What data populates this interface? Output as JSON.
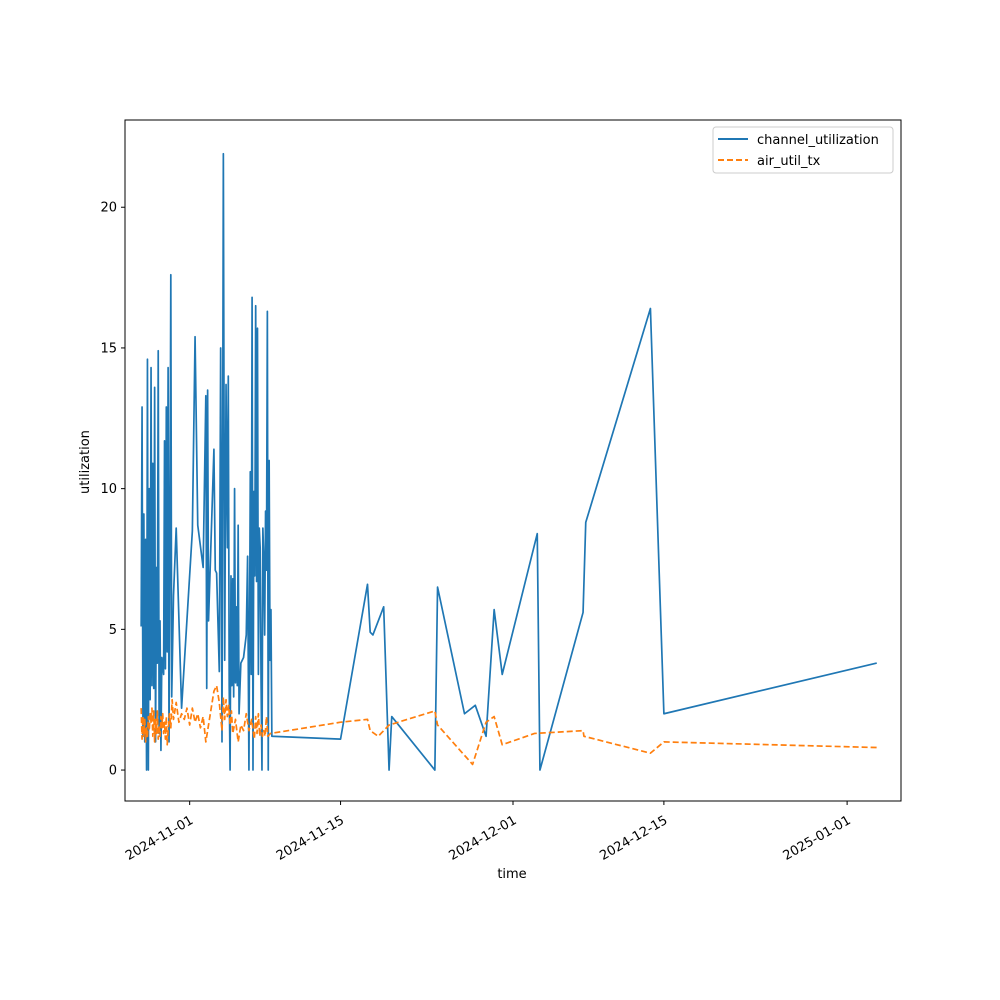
{
  "chart_data": {
    "type": "line",
    "title": "",
    "xlabel": "time",
    "ylabel": "utilization",
    "x_type": "date",
    "xlim": [
      "2024-10-26",
      "2025-01-06"
    ],
    "ylim": [
      -1.1,
      23.1
    ],
    "x_ticks": [
      "2024-11-01",
      "2024-11-15",
      "2024-12-01",
      "2024-12-15",
      "2025-01-01"
    ],
    "x_tick_labels": [
      "2024-11-01",
      "2024-11-15",
      "2024-12-01",
      "2024-12-15",
      "2025-01-01"
    ],
    "y_ticks": [
      0,
      5,
      10,
      15,
      20
    ],
    "y_tick_labels": [
      "0",
      "5",
      "10",
      "15",
      "20"
    ],
    "grid": false,
    "legend_position": "upper right",
    "series": [
      {
        "name": "channel_utilization",
        "color": "#1f77b4",
        "style": "solid",
        "points": [
          [
            "2024-10-27T12:00",
            5.1
          ],
          [
            "2024-10-27T14:00",
            12.9
          ],
          [
            "2024-10-27T16:00",
            1.2
          ],
          [
            "2024-10-27T18:00",
            9.1
          ],
          [
            "2024-10-27T20:00",
            1.0
          ],
          [
            "2024-10-27T22:00",
            8.2
          ],
          [
            "2024-10-28T00:00",
            0.0
          ],
          [
            "2024-10-28T02:00",
            14.6
          ],
          [
            "2024-10-28T04:00",
            0.0
          ],
          [
            "2024-10-28T06:00",
            10.0
          ],
          [
            "2024-10-28T08:00",
            2.5
          ],
          [
            "2024-10-28T10:00",
            14.3
          ],
          [
            "2024-10-28T12:00",
            3.0
          ],
          [
            "2024-10-28T14:00",
            10.9
          ],
          [
            "2024-10-28T16:00",
            2.9
          ],
          [
            "2024-10-28T18:00",
            13.6
          ],
          [
            "2024-10-28T20:00",
            1.0
          ],
          [
            "2024-10-28T22:00",
            7.2
          ],
          [
            "2024-10-29T00:00",
            3.8
          ],
          [
            "2024-10-29T02:00",
            14.9
          ],
          [
            "2024-10-29T04:00",
            1.3
          ],
          [
            "2024-10-29T06:00",
            5.3
          ],
          [
            "2024-10-29T08:00",
            0.7
          ],
          [
            "2024-10-29T10:00",
            4.0
          ],
          [
            "2024-10-29T14:00",
            3.4
          ],
          [
            "2024-10-29T16:00",
            11.7
          ],
          [
            "2024-10-29T18:00",
            3.6
          ],
          [
            "2024-10-29T20:00",
            12.9
          ],
          [
            "2024-10-29T22:00",
            4.2
          ],
          [
            "2024-10-30T00:00",
            14.3
          ],
          [
            "2024-10-30T02:00",
            1.0
          ],
          [
            "2024-10-30T04:00",
            8.0
          ],
          [
            "2024-10-30T06:00",
            17.6
          ],
          [
            "2024-10-30T08:00",
            2.6
          ],
          [
            "2024-10-30T12:00",
            6.2
          ],
          [
            "2024-10-30T18:00",
            8.6
          ],
          [
            "2024-10-31T06:00",
            2.2
          ],
          [
            "2024-11-01T06:00",
            8.5
          ],
          [
            "2024-11-01T12:00",
            15.4
          ],
          [
            "2024-11-01T18:00",
            8.7
          ],
          [
            "2024-11-02T06:00",
            7.2
          ],
          [
            "2024-11-02T12:00",
            13.3
          ],
          [
            "2024-11-02T14:00",
            2.9
          ],
          [
            "2024-11-02T16:00",
            13.5
          ],
          [
            "2024-11-02T18:00",
            5.3
          ],
          [
            "2024-11-03T06:00",
            11.4
          ],
          [
            "2024-11-03T09:00",
            7.1
          ],
          [
            "2024-11-03T12:00",
            7.0
          ],
          [
            "2024-11-03T18:00",
            3.5
          ],
          [
            "2024-11-03T21:00",
            15.0
          ],
          [
            "2024-11-04T00:00",
            1.0
          ],
          [
            "2024-11-04T03:00",
            21.9
          ],
          [
            "2024-11-04T06:00",
            3.9
          ],
          [
            "2024-11-04T09:00",
            13.7
          ],
          [
            "2024-11-04T12:00",
            7.9
          ],
          [
            "2024-11-04T14:00",
            14.0
          ],
          [
            "2024-11-04T16:00",
            3.0
          ],
          [
            "2024-11-04T18:00",
            0.0
          ],
          [
            "2024-11-04T20:00",
            6.9
          ],
          [
            "2024-11-04T22:00",
            3.0
          ],
          [
            "2024-11-05T00:00",
            6.8
          ],
          [
            "2024-11-05T02:00",
            2.6
          ],
          [
            "2024-11-05T04:00",
            10.0
          ],
          [
            "2024-11-05T06:00",
            3.1
          ],
          [
            "2024-11-05T08:00",
            5.8
          ],
          [
            "2024-11-05T10:00",
            3.0
          ],
          [
            "2024-11-05T12:00",
            8.7
          ],
          [
            "2024-11-05T14:00",
            2.0
          ],
          [
            "2024-11-05T18:00",
            3.8
          ],
          [
            "2024-11-06T00:00",
            4.0
          ],
          [
            "2024-11-06T06:00",
            4.8
          ],
          [
            "2024-11-06T09:00",
            7.6
          ],
          [
            "2024-11-06T12:00",
            0.0
          ],
          [
            "2024-11-06T15:00",
            10.6
          ],
          [
            "2024-11-06T17:00",
            3.4
          ],
          [
            "2024-11-06T19:00",
            16.8
          ],
          [
            "2024-11-06T21:00",
            0.0
          ],
          [
            "2024-11-06T23:00",
            9.9
          ],
          [
            "2024-11-07T01:00",
            6.9
          ],
          [
            "2024-11-07T03:00",
            16.5
          ],
          [
            "2024-11-07T05:00",
            6.7
          ],
          [
            "2024-11-07T07:00",
            15.7
          ],
          [
            "2024-11-07T09:00",
            3.4
          ],
          [
            "2024-11-07T11:00",
            8.6
          ],
          [
            "2024-11-07T13:00",
            7.9
          ],
          [
            "2024-11-07T15:00",
            3.1
          ],
          [
            "2024-11-07T17:00",
            0.0
          ],
          [
            "2024-11-07T19:00",
            8.6
          ],
          [
            "2024-11-07T21:00",
            7.5
          ],
          [
            "2024-11-07T23:00",
            4.8
          ],
          [
            "2024-11-08T01:00",
            9.2
          ],
          [
            "2024-11-08T03:00",
            7.1
          ],
          [
            "2024-11-08T05:00",
            16.3
          ],
          [
            "2024-11-08T07:00",
            0.0
          ],
          [
            "2024-11-08T09:00",
            11.0
          ],
          [
            "2024-11-08T11:00",
            3.9
          ],
          [
            "2024-11-08T13:00",
            5.7
          ],
          [
            "2024-11-08T15:00",
            1.2
          ],
          [
            "2024-11-15T00:00",
            1.1
          ],
          [
            "2024-11-17T12:00",
            6.6
          ],
          [
            "2024-11-17T18:00",
            4.9
          ],
          [
            "2024-11-18T00:00",
            4.8
          ],
          [
            "2024-11-19T00:00",
            5.8
          ],
          [
            "2024-11-19T12:00",
            0.0
          ],
          [
            "2024-11-19T18:00",
            1.9
          ],
          [
            "2024-11-23T18:00",
            0.0
          ],
          [
            "2024-11-24T00:00",
            6.5
          ],
          [
            "2024-11-26T12:00",
            2.0
          ],
          [
            "2024-11-27T12:00",
            2.3
          ],
          [
            "2024-11-28T12:00",
            1.2
          ],
          [
            "2024-11-29T06:00",
            5.7
          ],
          [
            "2024-11-30T00:00",
            3.4
          ],
          [
            "2024-12-03T06:00",
            8.4
          ],
          [
            "2024-12-03T12:00",
            0.0
          ],
          [
            "2024-12-07T12:00",
            5.6
          ],
          [
            "2024-12-07T18:00",
            8.8
          ],
          [
            "2024-12-13T18:00",
            16.4
          ],
          [
            "2024-12-15T00:00",
            2.0
          ],
          [
            "2025-01-03T18:00",
            3.8
          ]
        ]
      },
      {
        "name": "air_util_tx",
        "color": "#ff7f0e",
        "style": "dashed",
        "points": [
          [
            "2024-10-27T12:00",
            2.2
          ],
          [
            "2024-10-27T14:00",
            1.1
          ],
          [
            "2024-10-27T16:00",
            1.9
          ],
          [
            "2024-10-27T18:00",
            1.2
          ],
          [
            "2024-10-27T20:00",
            1.8
          ],
          [
            "2024-10-27T22:00",
            1.0
          ],
          [
            "2024-10-28T00:00",
            1.5
          ],
          [
            "2024-10-28T02:00",
            1.2
          ],
          [
            "2024-10-28T04:00",
            1.9
          ],
          [
            "2024-10-28T06:00",
            1.4
          ],
          [
            "2024-10-28T08:00",
            2.0
          ],
          [
            "2024-10-28T10:00",
            1.7
          ],
          [
            "2024-10-28T12:00",
            2.2
          ],
          [
            "2024-10-28T14:00",
            1.2
          ],
          [
            "2024-10-28T16:00",
            2.1
          ],
          [
            "2024-10-28T18:00",
            1.0
          ],
          [
            "2024-10-28T20:00",
            1.8
          ],
          [
            "2024-10-28T22:00",
            1.3
          ],
          [
            "2024-10-29T00:00",
            2.1
          ],
          [
            "2024-10-29T02:00",
            1.1
          ],
          [
            "2024-10-29T04:00",
            1.6
          ],
          [
            "2024-10-29T06:00",
            1.2
          ],
          [
            "2024-10-29T08:00",
            1.9
          ],
          [
            "2024-10-29T10:00",
            1.5
          ],
          [
            "2024-10-29T12:00",
            2.0
          ],
          [
            "2024-10-29T14:00",
            1.3
          ],
          [
            "2024-10-29T16:00",
            1.7
          ],
          [
            "2024-10-29T18:00",
            1.1
          ],
          [
            "2024-10-29T20:00",
            1.9
          ],
          [
            "2024-10-29T22:00",
            0.9
          ],
          [
            "2024-10-30T00:00",
            1.4
          ],
          [
            "2024-10-30T03:00",
            2.0
          ],
          [
            "2024-10-30T06:00",
            1.5
          ],
          [
            "2024-10-30T09:00",
            2.5
          ],
          [
            "2024-10-30T12:00",
            1.8
          ],
          [
            "2024-10-30T18:00",
            2.4
          ],
          [
            "2024-10-31T00:00",
            1.7
          ],
          [
            "2024-10-31T06:00",
            2.0
          ],
          [
            "2024-10-31T12:00",
            1.8
          ],
          [
            "2024-10-31T18:00",
            2.2
          ],
          [
            "2024-11-01T00:00",
            1.6
          ],
          [
            "2024-11-01T06:00",
            2.2
          ],
          [
            "2024-11-01T12:00",
            1.7
          ],
          [
            "2024-11-01T18:00",
            2.0
          ],
          [
            "2024-11-02T00:00",
            1.5
          ],
          [
            "2024-11-02T06:00",
            1.9
          ],
          [
            "2024-11-02T12:00",
            1.0
          ],
          [
            "2024-11-02T18:00",
            1.6
          ],
          [
            "2024-11-03T00:00",
            2.2
          ],
          [
            "2024-11-03T06:00",
            2.8
          ],
          [
            "2024-11-03T12:00",
            3.0
          ],
          [
            "2024-11-03T18:00",
            2.4
          ],
          [
            "2024-11-04T00:00",
            1.4
          ],
          [
            "2024-11-04T03:00",
            2.6
          ],
          [
            "2024-11-04T06:00",
            1.8
          ],
          [
            "2024-11-04T09:00",
            2.5
          ],
          [
            "2024-11-04T12:00",
            1.9
          ],
          [
            "2024-11-04T15:00",
            2.3
          ],
          [
            "2024-11-04T18:00",
            1.6
          ],
          [
            "2024-11-04T21:00",
            2.1
          ],
          [
            "2024-11-05T00:00",
            1.3
          ],
          [
            "2024-11-05T06:00",
            1.8
          ],
          [
            "2024-11-05T12:00",
            1.0
          ],
          [
            "2024-11-05T18:00",
            1.6
          ],
          [
            "2024-11-06T00:00",
            1.4
          ],
          [
            "2024-11-06T06:00",
            2.0
          ],
          [
            "2024-11-06T12:00",
            1.4
          ],
          [
            "2024-11-06T18:00",
            1.8
          ],
          [
            "2024-11-07T00:00",
            1.1
          ],
          [
            "2024-11-07T03:00",
            1.9
          ],
          [
            "2024-11-07T06:00",
            1.3
          ],
          [
            "2024-11-07T09:00",
            2.0
          ],
          [
            "2024-11-07T12:00",
            1.2
          ],
          [
            "2024-11-07T15:00",
            1.6
          ],
          [
            "2024-11-07T18:00",
            1.2
          ],
          [
            "2024-11-07T21:00",
            1.4
          ],
          [
            "2024-11-08T00:00",
            1.2
          ],
          [
            "2024-11-08T03:00",
            1.9
          ],
          [
            "2024-11-08T06:00",
            1.2
          ],
          [
            "2024-11-08T12:00",
            1.3
          ],
          [
            "2024-11-15T00:00",
            1.7
          ],
          [
            "2024-11-17T12:00",
            1.8
          ],
          [
            "2024-11-17T18:00",
            1.4
          ],
          [
            "2024-11-18T12:00",
            1.2
          ],
          [
            "2024-11-19T12:00",
            1.6
          ],
          [
            "2024-11-23T18:00",
            2.1
          ],
          [
            "2024-11-24T00:00",
            1.6
          ],
          [
            "2024-11-27T06:00",
            0.2
          ],
          [
            "2024-11-28T12:00",
            1.7
          ],
          [
            "2024-11-29T06:00",
            1.9
          ],
          [
            "2024-11-30T00:00",
            0.9
          ],
          [
            "2024-12-03T00:00",
            1.3
          ],
          [
            "2024-12-07T12:00",
            1.4
          ],
          [
            "2024-12-07T14:00",
            1.2
          ],
          [
            "2024-12-13T18:00",
            0.6
          ],
          [
            "2024-12-15T00:00",
            1.0
          ],
          [
            "2025-01-03T18:00",
            0.8
          ]
        ]
      }
    ]
  }
}
